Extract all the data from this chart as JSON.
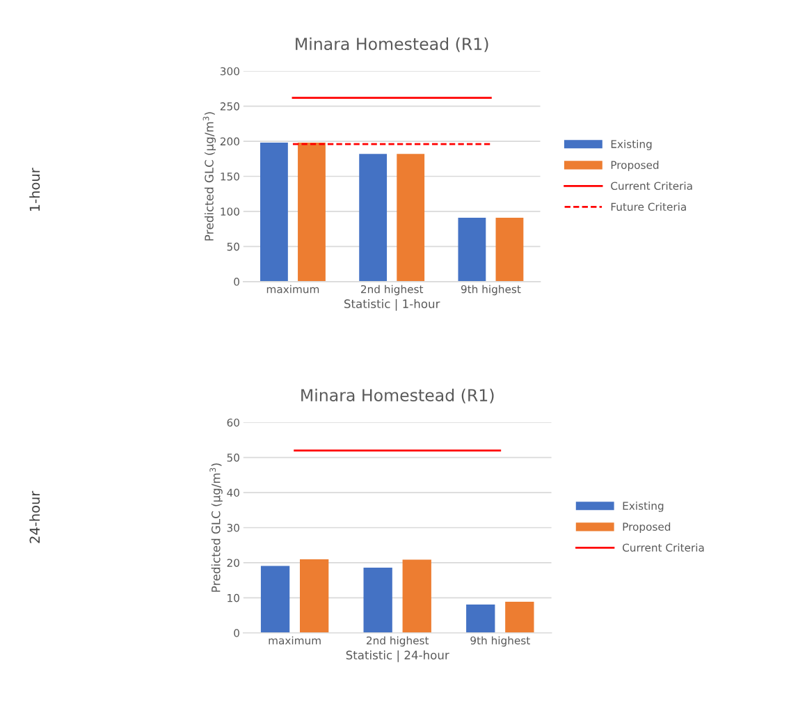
{
  "chart_data": [
    {
      "type": "bar",
      "title": "Minara Homestead (R1)",
      "xlabel": "Statistic | 1-hour",
      "ylabel": "Predicted GLC (µg/m$^{3}$)",
      "annotations": [
        "1-hour"
      ],
      "categories": [
        "maximum",
        "2nd highest",
        "9th highest"
      ],
      "series": [
        {
          "name": "Existing",
          "color": "#4472c4",
          "values": [
            198,
            182,
            91
          ]
        },
        {
          "name": "Proposed",
          "color": "#ed7d31",
          "values": [
            198,
            182,
            91
          ]
        },
        {
          "name": "Current Criteria",
          "type": "line",
          "color": "#ff0000",
          "line_style": "solid",
          "values": [
            262,
            262,
            262
          ]
        },
        {
          "name": "Future Criteria",
          "type": "line",
          "color": "#ff0000",
          "line_style": "dashed",
          "values": [
            196,
            196,
            196
          ]
        }
      ],
      "ylim": [
        0,
        300
      ],
      "yticks": [
        0,
        50,
        100,
        150,
        200,
        250,
        300
      ],
      "grid": "y",
      "legend": "right"
    },
    {
      "type": "bar",
      "title": "Minara Homestead (R1)",
      "xlabel": "Statistic | 24-hour",
      "ylabel": "Predicted GLC (µg/m$^{3}$)",
      "annotations": [
        "24-hour"
      ],
      "categories": [
        "maximum",
        "2nd highest",
        "9th highest"
      ],
      "series": [
        {
          "name": "Existing",
          "color": "#4472c4",
          "values": [
            19.1,
            18.6,
            8.1
          ]
        },
        {
          "name": "Proposed",
          "color": "#ed7d31",
          "values": [
            21.0,
            20.9,
            8.9
          ]
        },
        {
          "name": "Current Criteria",
          "type": "line",
          "color": "#ff0000",
          "line_style": "solid",
          "values": [
            52,
            52,
            52
          ]
        }
      ],
      "ylim": [
        0,
        60
      ],
      "yticks": [
        0,
        10,
        20,
        30,
        40,
        50,
        60
      ],
      "grid": "y",
      "legend": "right"
    }
  ]
}
